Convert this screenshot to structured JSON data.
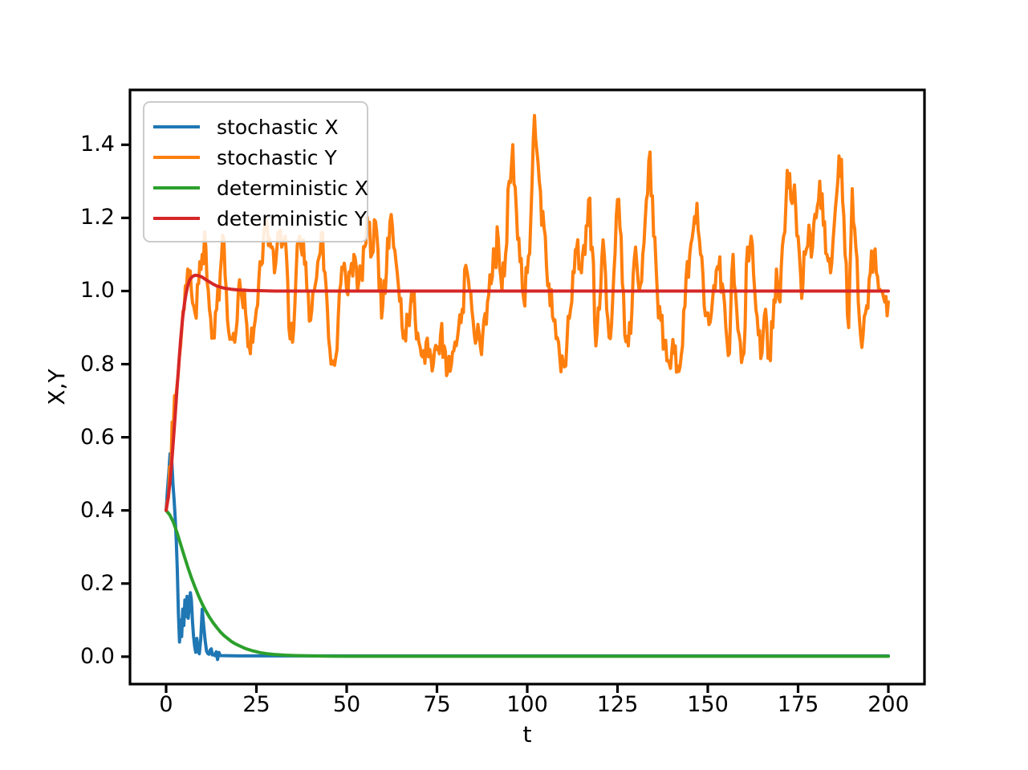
{
  "chart_data": {
    "type": "line",
    "title": "",
    "xlabel": "t",
    "ylabel": "X,Y",
    "xlim": [
      -10,
      210
    ],
    "ylim": [
      -0.075,
      1.55
    ],
    "xticks": [
      0,
      25,
      50,
      75,
      100,
      125,
      150,
      175,
      200
    ],
    "xtick_labels": [
      "0",
      "25",
      "50",
      "75",
      "100",
      "125",
      "150",
      "175",
      "200"
    ],
    "yticks": [
      0.0,
      0.2,
      0.4,
      0.6,
      0.8,
      1.0,
      1.2,
      1.4
    ],
    "ytick_labels": [
      "0.0",
      "0.2",
      "0.4",
      "0.6",
      "0.8",
      "1.0",
      "1.2",
      "1.4"
    ],
    "grid": false,
    "legend_position": "upper left",
    "axes_color": "#000000",
    "legend_border_color": "#cbcbcb",
    "noise_seed": 7,
    "series": [
      {
        "id": "stochastic-x",
        "name": "stochastic X",
        "color": "#1f77b4",
        "style": "noisy",
        "noise_amp": 0.012,
        "points": [
          [
            0,
            0.4
          ],
          [
            0.4,
            0.46
          ],
          [
            0.8,
            0.51
          ],
          [
            1.1,
            0.555
          ],
          [
            1.4,
            0.5
          ],
          [
            1.6,
            0.53
          ],
          [
            1.9,
            0.47
          ],
          [
            2.2,
            0.43
          ],
          [
            2.5,
            0.38
          ],
          [
            2.8,
            0.32
          ],
          [
            3.1,
            0.24
          ],
          [
            3.4,
            0.12
          ],
          [
            3.7,
            0.04
          ],
          [
            4.0,
            0.1
          ],
          [
            4.3,
            0.055
          ],
          [
            4.6,
            0.13
          ],
          [
            4.9,
            0.085
          ],
          [
            5.2,
            0.155
          ],
          [
            5.5,
            0.11
          ],
          [
            5.8,
            0.165
          ],
          [
            6.1,
            0.105
          ],
          [
            6.4,
            0.135
          ],
          [
            6.7,
            0.175
          ],
          [
            7.0,
            0.155
          ],
          [
            7.3,
            0.095
          ],
          [
            7.6,
            0.055
          ],
          [
            7.9,
            0.028
          ],
          [
            8.2,
            0.012
          ],
          [
            8.5,
            0.05
          ],
          [
            8.8,
            0.018
          ],
          [
            9.2,
            0.008
          ],
          [
            9.6,
            0.05
          ],
          [
            10.0,
            0.13
          ],
          [
            10.4,
            0.085
          ],
          [
            10.8,
            0.045
          ],
          [
            11.2,
            0.015
          ],
          [
            11.6,
            0.008
          ],
          [
            12.2,
            0.018
          ],
          [
            12.8,
            0.005
          ],
          [
            13.5,
            0.003
          ],
          [
            15,
            0.003
          ],
          [
            20,
            0.002
          ],
          [
            200,
            0.002
          ]
        ]
      },
      {
        "id": "stochastic-y",
        "name": "stochastic Y",
        "color": "#ff7f0e",
        "style": "noisy",
        "noise_amp": 0.05,
        "t0": 0,
        "dt": 1,
        "values": [
          0.4,
          0.52,
          0.63,
          0.74,
          0.85,
          0.95,
          1.06,
          1.0,
          0.94,
          1.02,
          1.1,
          1.12,
          0.95,
          0.89,
          0.95,
          1.05,
          1.14,
          0.92,
          0.87,
          0.86,
          1.0,
          0.98,
          0.94,
          0.85,
          0.86,
          0.95,
          1.08,
          1.15,
          1.18,
          1.12,
          1.05,
          1.16,
          1.12,
          1.15,
          0.9,
          0.86,
          1.05,
          1.15,
          1.14,
          1.0,
          0.92,
          1.0,
          1.08,
          1.16,
          1.05,
          0.87,
          0.8,
          0.82,
          1.0,
          1.06,
          1.0,
          1.05,
          1.1,
          1.0,
          1.05,
          1.12,
          1.17,
          1.1,
          1.19,
          1.0,
          0.96,
          1.05,
          1.19,
          1.12,
          1.05,
          0.98,
          0.89,
          0.92,
          1.0,
          0.92,
          0.86,
          0.82,
          0.86,
          0.84,
          0.8,
          0.84,
          0.88,
          0.85,
          0.78,
          0.8,
          0.86,
          0.9,
          0.95,
          1.07,
          1.0,
          0.92,
          0.87,
          0.85,
          0.92,
          0.97,
          1.02,
          1.1,
          1.14,
          1.0,
          1.1,
          1.3,
          1.4,
          1.22,
          1.08,
          0.98,
          1.05,
          1.2,
          1.48,
          1.35,
          1.18,
          1.15,
          1.02,
          0.93,
          0.87,
          0.82,
          0.8,
          0.86,
          0.95,
          1.05,
          1.14,
          1.05,
          1.1,
          1.25,
          1.12,
          0.85,
          0.95,
          1.14,
          0.95,
          0.87,
          1.05,
          1.25,
          1.15,
          0.88,
          0.85,
          0.95,
          1.12,
          1.0,
          1.1,
          1.25,
          1.38,
          1.15,
          1.0,
          0.92,
          0.85,
          0.81,
          0.83,
          0.85,
          0.78,
          0.85,
          1.04,
          1.1,
          1.17,
          1.24,
          1.1,
          0.96,
          0.94,
          0.94,
          1.0,
          1.06,
          1.02,
          0.9,
          0.83,
          1.1,
          0.95,
          0.86,
          0.83,
          1.12,
          1.15,
          1.0,
          0.88,
          0.83,
          0.95,
          0.82,
          0.9,
          1.06,
          0.97,
          1.15,
          1.33,
          1.25,
          1.29,
          1.15,
          0.98,
          1.1,
          1.18,
          1.12,
          1.2,
          1.3,
          1.18,
          1.1,
          1.05,
          1.18,
          1.3,
          1.36,
          1.1,
          0.9,
          1.28,
          1.12,
          0.92,
          0.88,
          0.96,
          1.05,
          1.1,
          1.04,
          1.0,
          0.97,
          0.97
        ]
      },
      {
        "id": "deterministic-x",
        "name": "deterministic X",
        "color": "#2ca02c",
        "style": "smooth",
        "noise_amp": 0,
        "points": [
          [
            0,
            0.4
          ],
          [
            1,
            0.388
          ],
          [
            2,
            0.368
          ],
          [
            3,
            0.34
          ],
          [
            4,
            0.308
          ],
          [
            5,
            0.276
          ],
          [
            6,
            0.245
          ],
          [
            7,
            0.216
          ],
          [
            8,
            0.19
          ],
          [
            9,
            0.166
          ],
          [
            10,
            0.144
          ],
          [
            11,
            0.125
          ],
          [
            12,
            0.108
          ],
          [
            13,
            0.093
          ],
          [
            14,
            0.08
          ],
          [
            15,
            0.068
          ],
          [
            16,
            0.058
          ],
          [
            17,
            0.05
          ],
          [
            18,
            0.042
          ],
          [
            19,
            0.036
          ],
          [
            20,
            0.031
          ],
          [
            22,
            0.022
          ],
          [
            24,
            0.016
          ],
          [
            26,
            0.011
          ],
          [
            28,
            0.008
          ],
          [
            30,
            0.006
          ],
          [
            33,
            0.004
          ],
          [
            36,
            0.003
          ],
          [
            40,
            0.002
          ],
          [
            45,
            0.0015
          ],
          [
            50,
            0.001
          ],
          [
            60,
            0.001
          ],
          [
            200,
            0.001
          ]
        ]
      },
      {
        "id": "deterministic-y",
        "name": "deterministic Y",
        "color": "#d62728",
        "style": "smooth",
        "noise_amp": 0,
        "points": [
          [
            0,
            0.4
          ],
          [
            0.5,
            0.43
          ],
          [
            1,
            0.47
          ],
          [
            1.5,
            0.525
          ],
          [
            2,
            0.59
          ],
          [
            2.5,
            0.66
          ],
          [
            3,
            0.73
          ],
          [
            3.5,
            0.8
          ],
          [
            4,
            0.865
          ],
          [
            4.5,
            0.92
          ],
          [
            5,
            0.96
          ],
          [
            5.5,
            0.992
          ],
          [
            6,
            1.015
          ],
          [
            6.5,
            1.03
          ],
          [
            7,
            1.037
          ],
          [
            7.5,
            1.041
          ],
          [
            8,
            1.043
          ],
          [
            9,
            1.042
          ],
          [
            10,
            1.038
          ],
          [
            11,
            1.031
          ],
          [
            12,
            1.025
          ],
          [
            13,
            1.019
          ],
          [
            14,
            1.014
          ],
          [
            15,
            1.011
          ],
          [
            16,
            1.008
          ],
          [
            18,
            1.005
          ],
          [
            20,
            1.003
          ],
          [
            23,
            1.0015
          ],
          [
            26,
            1.001
          ],
          [
            30,
            1.0
          ],
          [
            200,
            1.0
          ]
        ]
      }
    ]
  }
}
